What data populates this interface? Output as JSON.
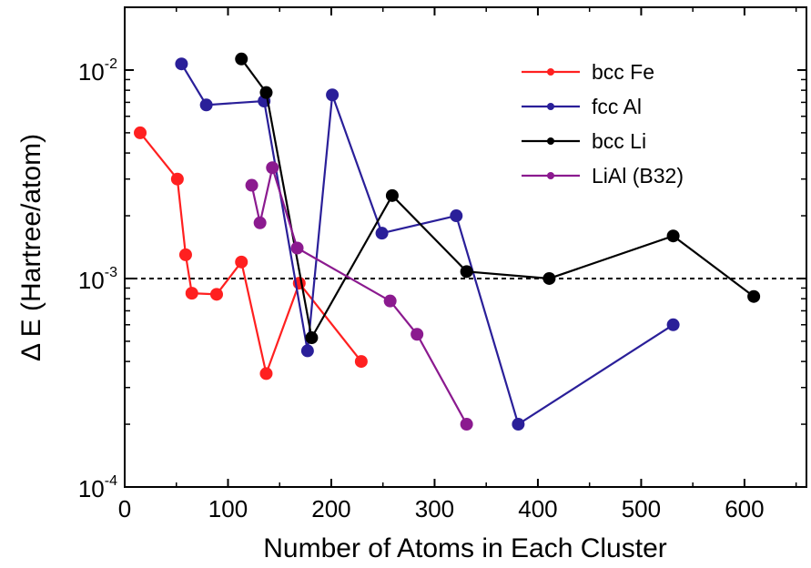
{
  "chart_data": {
    "type": "line",
    "xlabel": "Number of Atoms in Each Cluster",
    "ylabel": "Δ E (Hartree/atom)",
    "xlim": [
      0,
      660
    ],
    "ylim": [
      0.0001,
      0.02
    ],
    "yscale": "log",
    "xticks": [
      0,
      100,
      200,
      300,
      400,
      500,
      600
    ],
    "xtick_labels": [
      "0",
      "100",
      "200",
      "300",
      "400",
      "500",
      "600"
    ],
    "yticks": [
      {
        "value": 0.01,
        "base": "10",
        "exp": "-2"
      },
      {
        "value": 0.001,
        "base": "10",
        "exp": "-3"
      },
      {
        "value": 0.0001,
        "base": "10",
        "exp": "-4"
      }
    ],
    "reference_line": {
      "y": 0.001,
      "style": "dashed"
    },
    "grid": false,
    "legend_position": "top-right",
    "series": [
      {
        "name": "bcc Fe",
        "color": "#ff2020",
        "points": [
          [
            15,
            0.005
          ],
          [
            51,
            0.003
          ],
          [
            59,
            0.0013
          ],
          [
            65,
            0.00085
          ],
          [
            89,
            0.00084
          ],
          [
            113,
            0.0012
          ],
          [
            137,
            0.00035
          ],
          [
            169,
            0.00095
          ],
          [
            229,
            0.0004
          ]
        ]
      },
      {
        "name": "fcc Al",
        "color": "#2a1f99",
        "points": [
          [
            55,
            0.0107
          ],
          [
            79,
            0.0068
          ],
          [
            135,
            0.0071
          ],
          [
            177,
            0.00045
          ],
          [
            201,
            0.0076
          ],
          [
            249,
            0.00165
          ],
          [
            321,
            0.002
          ],
          [
            381,
            0.0002
          ],
          [
            531,
            0.0006
          ]
        ]
      },
      {
        "name": "bcc Li",
        "color": "#000000",
        "points": [
          [
            113,
            0.0113
          ],
          [
            137,
            0.0078
          ],
          [
            181,
            0.00052
          ],
          [
            259,
            0.0025
          ],
          [
            331,
            0.00108
          ],
          [
            411,
            0.001
          ],
          [
            531,
            0.0016
          ],
          [
            609,
            0.00082
          ]
        ]
      },
      {
        "name": "LiAl (B32)",
        "color": "#8b1a8f",
        "points": [
          [
            123,
            0.0028
          ],
          [
            131,
            0.00185
          ],
          [
            143,
            0.0034
          ],
          [
            167,
            0.0014
          ],
          [
            257,
            0.00078
          ],
          [
            283,
            0.00054
          ],
          [
            331,
            0.0002
          ]
        ]
      }
    ]
  }
}
